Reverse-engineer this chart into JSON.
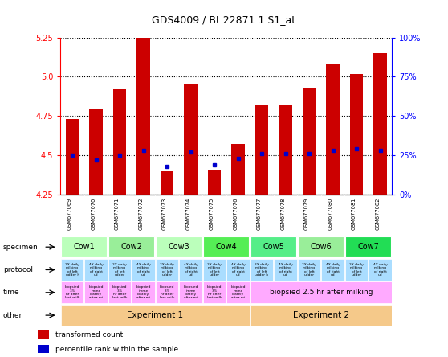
{
  "title": "GDS4009 / Bt.22871.1.S1_at",
  "samples": [
    "GSM677069",
    "GSM677070",
    "GSM677071",
    "GSM677072",
    "GSM677073",
    "GSM677074",
    "GSM677075",
    "GSM677076",
    "GSM677077",
    "GSM677078",
    "GSM677079",
    "GSM677080",
    "GSM677081",
    "GSM677082"
  ],
  "bar_values": [
    4.73,
    4.8,
    4.92,
    5.25,
    4.4,
    4.95,
    4.41,
    4.57,
    4.82,
    4.82,
    4.93,
    5.08,
    5.02,
    5.15
  ],
  "blue_values": [
    4.5,
    4.47,
    4.5,
    4.53,
    4.43,
    4.52,
    4.44,
    4.48,
    4.51,
    4.51,
    4.51,
    4.53,
    4.54,
    4.53
  ],
  "ylim": [
    4.25,
    5.25
  ],
  "yticks_left": [
    4.25,
    4.5,
    4.75,
    5.0,
    5.25
  ],
  "yticks_right": [
    0,
    25,
    50,
    75,
    100
  ],
  "ytick_right_labels": [
    "0%",
    "25%",
    "50%",
    "75%",
    "100%"
  ],
  "bar_color": "#cc0000",
  "blue_color": "#0000cc",
  "specimen_row": {
    "label": "specimen",
    "groups": [
      {
        "text": "Cow1",
        "start": 0,
        "end": 2,
        "color": "#bbffbb"
      },
      {
        "text": "Cow2",
        "start": 2,
        "end": 4,
        "color": "#99ee99"
      },
      {
        "text": "Cow3",
        "start": 4,
        "end": 6,
        "color": "#bbffbb"
      },
      {
        "text": "Cow4",
        "start": 6,
        "end": 8,
        "color": "#55ee55"
      },
      {
        "text": "Cow5",
        "start": 8,
        "end": 10,
        "color": "#55ee88"
      },
      {
        "text": "Cow6",
        "start": 10,
        "end": 12,
        "color": "#99ee99"
      },
      {
        "text": "Cow7",
        "start": 12,
        "end": 14,
        "color": "#22dd55"
      }
    ]
  },
  "protocol_row": {
    "label": "protocol",
    "color": "#aaddff",
    "cells": [
      "2X daily\nmilking\nof left\nudder h",
      "4X daily\nmilking\nof right\nud",
      "2X daily\nmilking\nof left\nudder",
      "4X daily\nmilking\nof right\nud",
      "2X daily\nmilking\nof left\nudder",
      "4X daily\nmilking\nof right\nud",
      "2X daily\nmilking\nof left\nudder",
      "4X daily\nmilking\nof right\nud",
      "2X daily\nmilking\nof left\nudder h",
      "4X daily\nmilking\nof right\nud",
      "2X daily\nmilking\nof left\nudder",
      "4X daily\nmilking\nof right\nud",
      "2X daily\nmilking\nof left\nudder",
      "4X daily\nmilking\nof right\nud"
    ]
  },
  "time_row": {
    "label": "time",
    "color_exp1": "#ffaaff",
    "color_exp2": "#ffaaff",
    "cells_exp1": [
      "biopsied\n3.5\nhr after\nlast milk",
      "biopsied\nimme\ndiately\nafter mi",
      "biopsied\n3.5\nhr after\nlast milk",
      "biopsied\nimme\ndiately\nafter mi",
      "biopsied\n3.5\nhr after\nlast milk",
      "biopsied\nimme\ndiately\nafter mi",
      "biopsied\n3.5\nhr after\nlast milk",
      "biopsied\nimme\ndiately\nafter mi"
    ],
    "merged_exp2": {
      "text": "biopsied 2.5 hr after milking",
      "start": 8,
      "end": 14
    }
  },
  "other_row": {
    "label": "other",
    "color": "#f5c98a",
    "groups": [
      {
        "text": "Experiment 1",
        "start": 0,
        "end": 8
      },
      {
        "text": "Experiment 2",
        "start": 8,
        "end": 14
      }
    ]
  },
  "legend": [
    {
      "color": "#cc0000",
      "label": "transformed count"
    },
    {
      "color": "#0000cc",
      "label": "percentile rank within the sample"
    }
  ]
}
